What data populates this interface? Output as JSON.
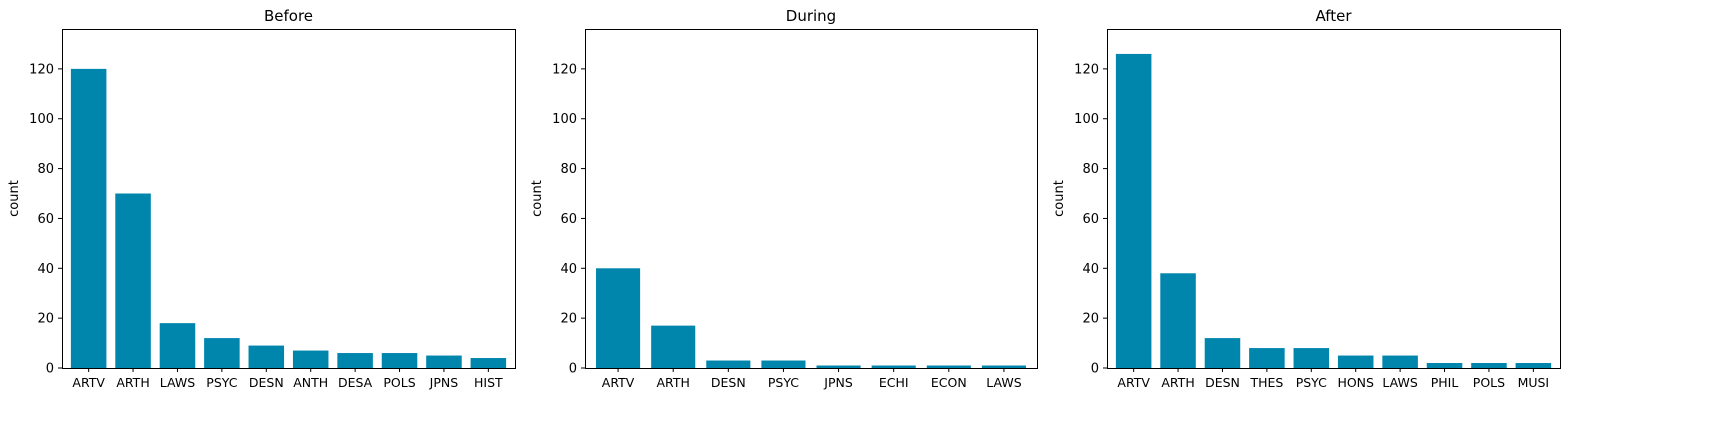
{
  "colors": {
    "bar": "#0086ad",
    "axis": "#000000",
    "background": "#ffffff"
  },
  "chart_data": [
    {
      "type": "bar",
      "title": "Before",
      "xlabel": "",
      "ylabel": "count",
      "ylim": [
        0,
        136
      ],
      "yticks": [
        0,
        20,
        40,
        60,
        80,
        100,
        120
      ],
      "grid": false,
      "categories": [
        "ARTV",
        "ARTH",
        "LAWS",
        "PSYC",
        "DESN",
        "ANTH",
        "DESA",
        "POLS",
        "JPNS",
        "HIST"
      ],
      "values": [
        120,
        70,
        18,
        12,
        9,
        7,
        6,
        6,
        5,
        4
      ]
    },
    {
      "type": "bar",
      "title": "During",
      "xlabel": "",
      "ylabel": "count",
      "ylim": [
        0,
        136
      ],
      "yticks": [
        0,
        20,
        40,
        60,
        80,
        100,
        120
      ],
      "grid": false,
      "categories": [
        "ARTV",
        "ARTH",
        "DESN",
        "PSYC",
        "JPNS",
        "ECHI",
        "ECON",
        "LAWS"
      ],
      "values": [
        40,
        17,
        3,
        3,
        1,
        1,
        1,
        1
      ]
    },
    {
      "type": "bar",
      "title": "After",
      "xlabel": "",
      "ylabel": "count",
      "ylim": [
        0,
        136
      ],
      "yticks": [
        0,
        20,
        40,
        60,
        80,
        100,
        120
      ],
      "grid": false,
      "categories": [
        "ARTV",
        "ARTH",
        "DESN",
        "THES",
        "PSYC",
        "HONS",
        "LAWS",
        "PHIL",
        "POLS",
        "MUSI"
      ],
      "values": [
        126,
        38,
        12,
        8,
        8,
        5,
        5,
        2,
        2,
        2
      ]
    }
  ]
}
